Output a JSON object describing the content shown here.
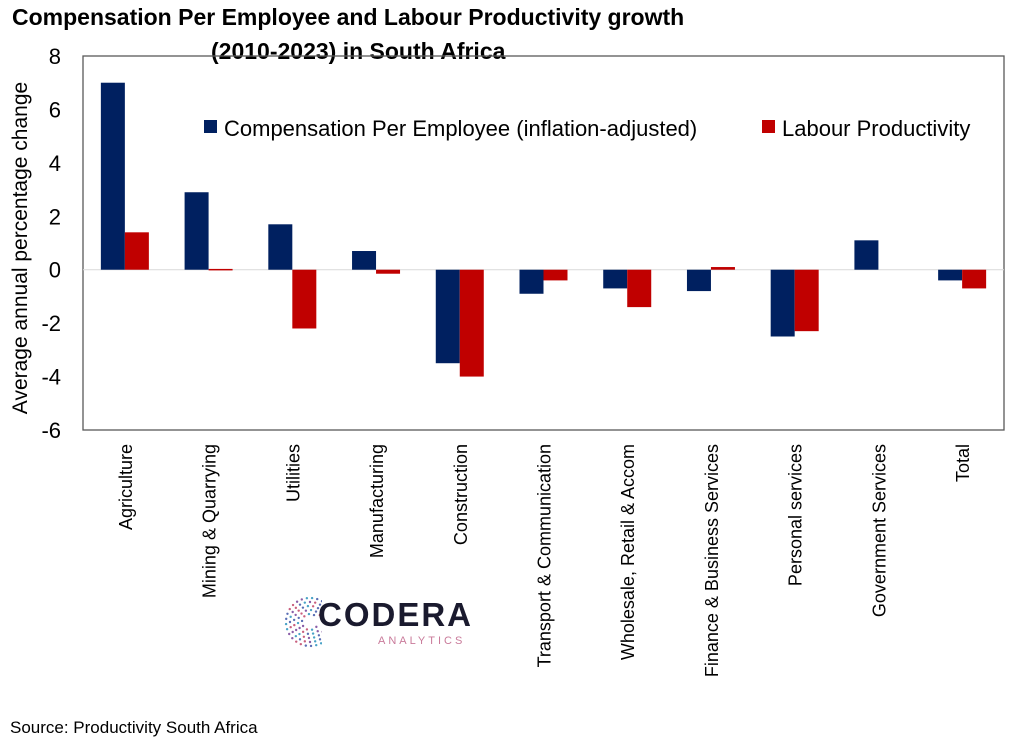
{
  "chart_data": {
    "type": "bar",
    "title": "Compensation Per Employee and Labour Productivity growth (2010-2023) in South Africa",
    "title_lines": [
      "Compensation Per Employee and Labour Productivity growth",
      "(2010-2023) in South Africa"
    ],
    "xlabel": "",
    "ylabel": "Average annual percentage change",
    "ylim": [
      -6,
      8
    ],
    "yticks": [
      8,
      6,
      4,
      2,
      0,
      -2,
      -4,
      -6
    ],
    "grid": false,
    "legend_position": "top-right",
    "categories": [
      "Agriculture",
      "Mining & Quarrying",
      "Utilities",
      "Manufacturing",
      "Construction",
      "Transport & Communication",
      "Wholesale, Retail & Accom",
      "Finance & Business Services",
      "Personal services",
      "Government Services",
      "Total"
    ],
    "series": [
      {
        "name": "Compensation Per Employee (inflation-adjusted)",
        "color": "#002060",
        "values": [
          7.0,
          2.9,
          1.7,
          0.7,
          -3.5,
          -0.9,
          -0.7,
          -0.8,
          -2.5,
          1.1,
          -0.4
        ]
      },
      {
        "name": "Labour Productivity",
        "color": "#C00000",
        "values": [
          1.4,
          0.03,
          -2.2,
          -0.15,
          -4.0,
          -0.4,
          -1.4,
          0.1,
          -2.3,
          0.0,
          -0.7
        ]
      }
    ]
  },
  "source": "Source: Productivity South Africa",
  "logo": {
    "name": "CODERA",
    "sub": "ANALYTICS"
  }
}
